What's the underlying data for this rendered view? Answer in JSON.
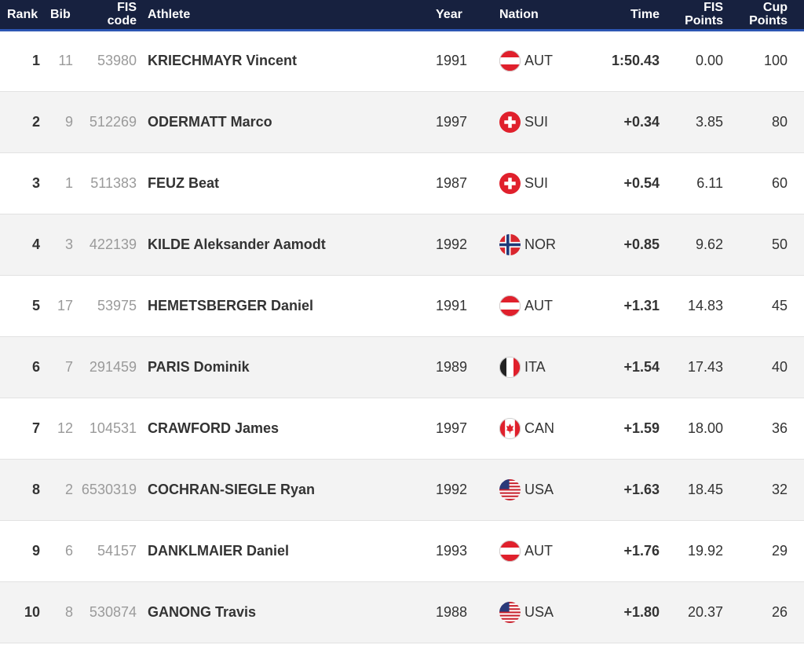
{
  "table": {
    "columns": [
      "Rank",
      "Bib",
      "FIS code",
      "Athlete",
      "Year",
      "Nation",
      "Time",
      "FIS Points",
      "Cup Points"
    ],
    "rows": [
      [
        "1",
        "11",
        "53980",
        "KRIECHMAYR Vincent",
        "1991",
        "AUT",
        "1:50.43",
        "0.00",
        "100"
      ],
      [
        "2",
        "9",
        "512269",
        "ODERMATT Marco",
        "1997",
        "SUI",
        "+0.34",
        "3.85",
        "80"
      ],
      [
        "3",
        "1",
        "511383",
        "FEUZ Beat",
        "1987",
        "SUI",
        "+0.54",
        "6.11",
        "60"
      ],
      [
        "4",
        "3",
        "422139",
        "KILDE Aleksander Aamodt",
        "1992",
        "NOR",
        "+0.85",
        "9.62",
        "50"
      ],
      [
        "5",
        "17",
        "53975",
        "HEMETSBERGER Daniel",
        "1991",
        "AUT",
        "+1.31",
        "14.83",
        "45"
      ],
      [
        "6",
        "7",
        "291459",
        "PARIS Dominik",
        "1989",
        "ITA",
        "+1.54",
        "17.43",
        "40"
      ],
      [
        "7",
        "12",
        "104531",
        "CRAWFORD James",
        "1997",
        "CAN",
        "+1.59",
        "18.00",
        "36"
      ],
      [
        "8",
        "2",
        "6530319",
        "COCHRAN-SIEGLE Ryan",
        "1992",
        "USA",
        "+1.63",
        "18.45",
        "32"
      ],
      [
        "9",
        "6",
        "54157",
        "DANKLMAIER Daniel",
        "1993",
        "AUT",
        "+1.76",
        "19.92",
        "29"
      ],
      [
        "10",
        "8",
        "530874",
        "GANONG Travis",
        "1988",
        "USA",
        "+1.80",
        "20.37",
        "26"
      ]
    ]
  }
}
